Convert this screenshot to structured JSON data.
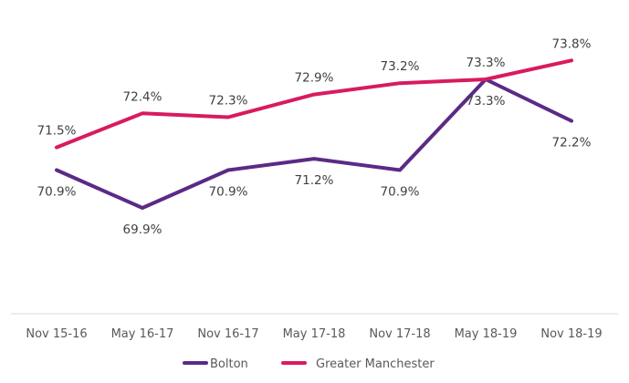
{
  "chart_data": {
    "type": "line",
    "title": "",
    "xlabel": "",
    "ylabel": "",
    "categories": [
      "Nov 15-16",
      "May 16-17",
      "Nov 16-17",
      "May 17-18",
      "Nov 17-18",
      "May 18-19",
      "Nov 18-19"
    ],
    "ylim": [
      67.1,
      75.4
    ],
    "grid": false,
    "legend_position": "bottom",
    "series": [
      {
        "name": "Bolton",
        "color": "#5b2a86",
        "values": [
          70.9,
          69.9,
          70.9,
          71.2,
          70.9,
          73.3,
          72.2
        ],
        "labels": [
          "70.9%",
          "69.9%",
          "70.9%",
          "71.2%",
          "70.9%",
          "73.3%",
          "72.2%"
        ],
        "label_position": "below"
      },
      {
        "name": "Greater Manchester",
        "color": "#d81b60",
        "values": [
          71.5,
          72.4,
          72.3,
          72.9,
          73.2,
          73.3,
          73.8
        ],
        "labels": [
          "71.5%",
          "72.4%",
          "72.3%",
          "72.9%",
          "73.2%",
          "73.3%",
          "73.8%"
        ],
        "label_position": "above"
      }
    ]
  }
}
